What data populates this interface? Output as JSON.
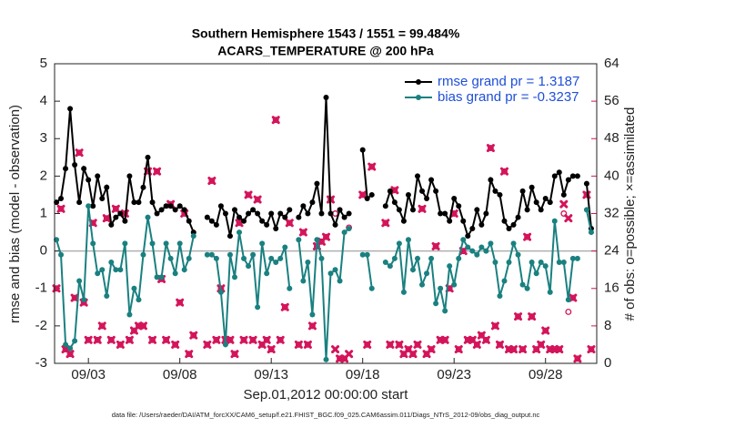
{
  "chart_data": {
    "type": "line",
    "title": "Southern Hemisphere 1543 / 1551 = 99.484%",
    "subtitle": "ACARS_TEMPERATURE @ 200 hPa",
    "xlabel": "Sep.01,2012 00:00:00 start",
    "ylabel": "rmse and bias (model - observation)",
    "y2label": "# of obs: o=possible; ×=assimilated",
    "footnote": "data file: /Users/raeder/DAI/ATM_forcXX/CAM6_setup/f.e21.FHIST_BGC.f09_025.CAM6assim.011/Diags_NTrS_2012-09/obs_diag_output.nc",
    "xlim": [
      0.15,
      29.8
    ],
    "xticks": [
      {
        "value": 2,
        "label": "09/03"
      },
      {
        "value": 7,
        "label": "09/08"
      },
      {
        "value": 12,
        "label": "09/13"
      },
      {
        "value": 17,
        "label": "09/18"
      },
      {
        "value": 22,
        "label": "09/23"
      },
      {
        "value": 27,
        "label": "09/28"
      }
    ],
    "ylim": [
      -3,
      5
    ],
    "yticks": [
      -3,
      -2,
      -1,
      0,
      1,
      2,
      3,
      4,
      5
    ],
    "y2lim": [
      0,
      64
    ],
    "y2ticks": [
      0,
      8,
      16,
      24,
      32,
      40,
      48,
      56,
      64
    ],
    "zero_line": 0,
    "legend": "upper right",
    "x": [
      0.25,
      0.5,
      0.75,
      1,
      1.25,
      1.5,
      1.75,
      2,
      2.25,
      2.5,
      2.75,
      3,
      3.25,
      3.5,
      3.75,
      4,
      4.25,
      4.5,
      4.75,
      5,
      5.25,
      5.5,
      5.75,
      6,
      6.25,
      6.5,
      6.75,
      7,
      7.25,
      7.5,
      7.75,
      8,
      8.25,
      8.5,
      8.75,
      9,
      9.25,
      9.5,
      9.75,
      10,
      10.25,
      10.5,
      10.75,
      11,
      11.25,
      11.5,
      11.75,
      12,
      12.25,
      12.5,
      12.75,
      13,
      13.25,
      13.5,
      13.75,
      14,
      14.25,
      14.5,
      14.75,
      15,
      15.25,
      15.5,
      15.75,
      16,
      16.25,
      16.5,
      16.75,
      17,
      17.25,
      17.5,
      17.75,
      18,
      18.25,
      18.5,
      18.75,
      19,
      19.25,
      19.5,
      19.75,
      20,
      20.25,
      20.5,
      20.75,
      21,
      21.25,
      21.5,
      21.75,
      22,
      22.25,
      22.5,
      22.75,
      23,
      23.25,
      23.5,
      23.75,
      24,
      24.25,
      24.5,
      24.75,
      25,
      25.25,
      25.5,
      25.75,
      26,
      26.25,
      26.5,
      26.75,
      27,
      27.25,
      27.5,
      27.75,
      28,
      28.25,
      28.5,
      28.75,
      29,
      29.25,
      29.5
    ],
    "series": [
      {
        "name": "rmse grand pr = 1.3187",
        "color": "#000000",
        "values": [
          1.3,
          1.4,
          2.2,
          3.8,
          2.3,
          1.3,
          2.2,
          1.9,
          1.2,
          2.0,
          1.4,
          1.7,
          0.7,
          0.9,
          1.0,
          0.8,
          2.0,
          1.3,
          1.3,
          1.7,
          2.5,
          1.3,
          1.0,
          1.1,
          1.2,
          1.2,
          1.1,
          1.2,
          1.1,
          0.8,
          0.5,
          null,
          null,
          0.9,
          0.8,
          0.7,
          1.2,
          1.0,
          0.4,
          1.1,
          0.9,
          0.8,
          1.0,
          1.1,
          1.0,
          0.8,
          0.7,
          1.0,
          0.6,
          1.0,
          0.9,
          1.1,
          null,
          0.9,
          1.2,
          1.0,
          1.3,
          1.8,
          1.0,
          4.1,
          1.0,
          0.7,
          1.1,
          0.9,
          1.0,
          null,
          null,
          2.7,
          1.4,
          1.5,
          null,
          null,
          1.2,
          1.6,
          1.3,
          1.1,
          0.8,
          1.5,
          1.1,
          2.0,
          1.6,
          1.4,
          1.9,
          1.6,
          1.0,
          1.0,
          0.8,
          1.4,
          1.2,
          0.8,
          0.4,
          0.6,
          1.1,
          0.7,
          1.0,
          1.9,
          1.6,
          1.5,
          0.8,
          0.6,
          0.7,
          0.9,
          1.6,
          1.1,
          1.7,
          1.3,
          1.1,
          1.4,
          1.3,
          2.0,
          2.1,
          1.5,
          1.9,
          2.0,
          2.0,
          null,
          1.8,
          0.6
        ]
      },
      {
        "name": "bias grand pr = -0.3237",
        "color": "#1a8080",
        "values": [
          0.3,
          -0.1,
          -2.5,
          -2.6,
          -2.4,
          -0.8,
          -1.3,
          1.2,
          0.2,
          -0.6,
          -0.5,
          -1.2,
          -0.3,
          -0.5,
          -0.5,
          0.2,
          -1.7,
          -1.0,
          -1.3,
          -0.1,
          0.9,
          0.2,
          -0.7,
          -0.7,
          0.2,
          -0.2,
          -0.6,
          0.2,
          -0.5,
          -0.2,
          0.4,
          null,
          null,
          -0.1,
          -0.1,
          -0.2,
          -1.1,
          -2.5,
          -0.1,
          -0.7,
          0.5,
          -0.2,
          -0.4,
          -0.1,
          -1.5,
          0.2,
          -0.6,
          -0.2,
          -0.3,
          -0.2,
          0.1,
          -1.0,
          null,
          0.3,
          -0.8,
          -0.3,
          -1.7,
          0.3,
          -0.2,
          -2.9,
          -0.6,
          -0.5,
          -0.8,
          0.5,
          0.6,
          null,
          null,
          -0.1,
          -0.1,
          -1.0,
          null,
          null,
          -0.3,
          -0.4,
          -0.2,
          0.2,
          -1.1,
          0.3,
          -0.5,
          -0.2,
          -0.9,
          -0.6,
          -0.2,
          -1.4,
          -1.0,
          -1.6,
          -0.4,
          -0.9,
          -0.2,
          0.3,
          0.1,
          0.0,
          -0.1,
          0.1,
          0.0,
          0.2,
          -0.3,
          -1.2,
          -0.8,
          -0.3,
          0.2,
          -0.1,
          -0.9,
          -1.0,
          -0.3,
          -0.6,
          -0.3,
          -0.4,
          -1.1,
          0.8,
          -0.3,
          -0.3,
          -1.3,
          -0.2,
          -0.2,
          null,
          1.1,
          0.5
        ]
      }
    ],
    "obs_color": "#d4145a",
    "obs_possible": [
      16,
      33,
      3,
      2,
      14,
      45,
      13,
      5,
      30,
      5,
      8,
      31,
      5,
      33,
      4,
      32,
      5,
      7,
      8,
      8,
      41,
      5,
      41,
      18,
      5,
      34,
      4,
      13,
      32,
      2,
      6,
      null,
      null,
      4,
      39,
      5,
      16,
      5,
      5,
      2,
      30,
      5,
      36,
      5,
      35,
      4,
      5,
      3,
      52,
      5,
      12,
      30,
      null,
      4,
      28,
      4,
      8,
      25,
      26,
      27,
      35,
      32,
      1,
      1,
      29,
      null,
      null,
      36,
      4,
      42,
      null,
      null,
      30,
      4,
      37,
      4,
      2,
      3,
      2,
      4,
      33,
      2,
      3,
      25,
      5,
      5,
      16,
      32,
      3,
      24,
      5,
      5,
      4,
      6,
      5,
      46,
      8,
      4,
      41,
      3,
      3,
      10,
      3,
      27,
      10,
      3,
      4,
      7,
      3,
      3,
      3,
      32,
      11,
      14,
      1,
      null,
      36,
      3
    ],
    "obs_assimilated": [
      16,
      33,
      3,
      2,
      14,
      45,
      13,
      5,
      30,
      5,
      8,
      31,
      5,
      33,
      4,
      32,
      5,
      7,
      8,
      8,
      41,
      5,
      41,
      18,
      5,
      34,
      4,
      13,
      32,
      2,
      6,
      null,
      null,
      4,
      39,
      5,
      16,
      5,
      5,
      2,
      30,
      5,
      36,
      5,
      35,
      4,
      5,
      3,
      52,
      5,
      12,
      30,
      null,
      4,
      28,
      4,
      8,
      25,
      26,
      27,
      35,
      3,
      1,
      1,
      2,
      null,
      null,
      36,
      4,
      42,
      null,
      null,
      30,
      4,
      37,
      4,
      2,
      3,
      2,
      4,
      33,
      2,
      3,
      25,
      5,
      5,
      16,
      32,
      3,
      24,
      5,
      5,
      4,
      6,
      5,
      46,
      8,
      4,
      41,
      3,
      3,
      10,
      3,
      27,
      10,
      3,
      4,
      7,
      3,
      3,
      3,
      34,
      31,
      14,
      1,
      null,
      36,
      3
    ]
  }
}
